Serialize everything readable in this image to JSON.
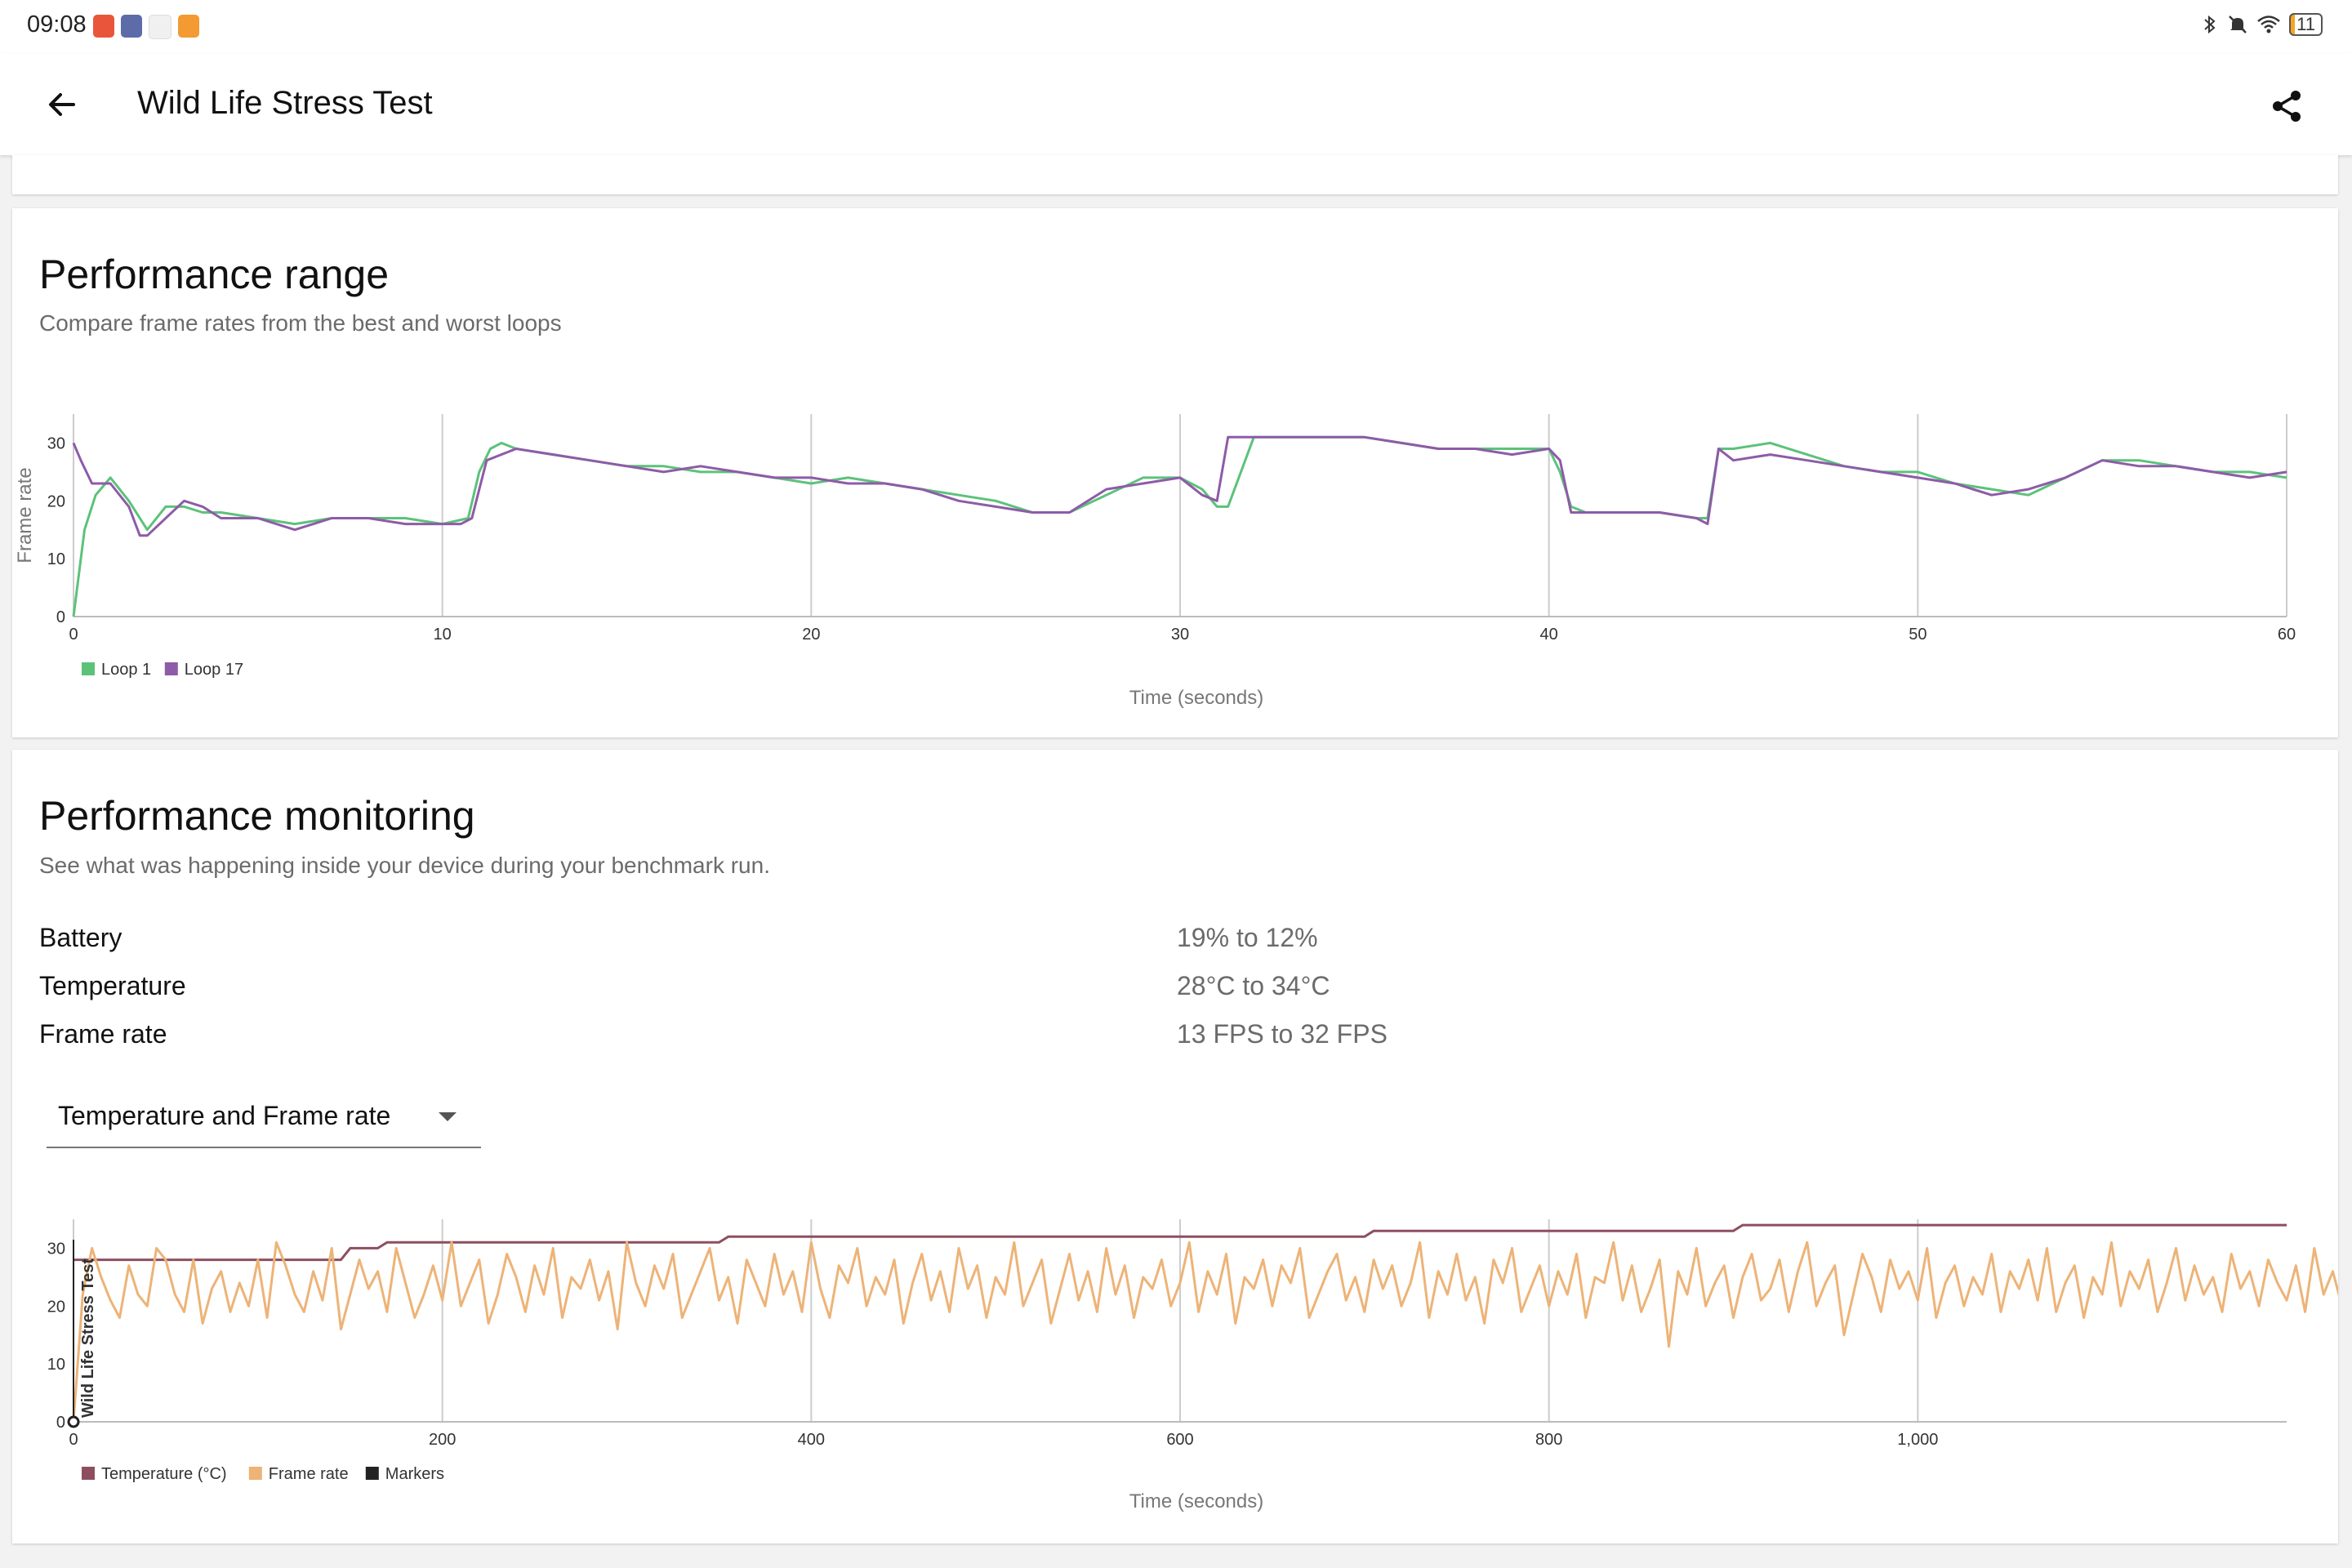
{
  "status_bar": {
    "time": "09:08",
    "battery": "11"
  },
  "app_bar": {
    "title": "Wild Life Stress Test"
  },
  "colors": {
    "loop1": "#5cc27a",
    "loop17": "#8e5ba8",
    "temperature": "#8d4f5f",
    "frame_rate": "#edb377",
    "markers": "#222222"
  },
  "performance_range": {
    "title": "Performance range",
    "subtitle": "Compare frame rates from the best and worst loops"
  },
  "performance_monitoring": {
    "title": "Performance monitoring",
    "subtitle": "See what was happening inside your device during your benchmark run.",
    "stats": [
      {
        "label": "Battery",
        "value": "19% to 12%"
      },
      {
        "label": "Temperature",
        "value": "28°C to 34°C"
      },
      {
        "label": "Frame rate",
        "value": "13 FPS to 32 FPS"
      }
    ],
    "dropdown": {
      "selected": "Temperature and Frame rate"
    }
  },
  "chart_data": [
    {
      "type": "line",
      "ylabel": "Frame rate",
      "xlabel": "Time (seconds)",
      "xlim": [
        0,
        60
      ],
      "ylim": [
        0,
        35
      ],
      "x_ticks": [
        "0",
        "10",
        "20",
        "30",
        "40",
        "50",
        "60"
      ],
      "y_ticks": [
        "0",
        "10",
        "20",
        "30"
      ],
      "legend": [
        "Loop 1",
        "Loop 17"
      ],
      "series": [
        {
          "name": "Loop 1",
          "x": [
            0,
            0.3,
            0.6,
            1,
            1.5,
            2,
            2.5,
            3,
            3.5,
            4,
            5,
            6,
            7,
            8,
            9,
            10,
            10.7,
            11,
            11.3,
            11.6,
            12,
            13,
            14,
            15,
            16,
            17,
            18,
            19,
            20,
            21,
            22,
            23,
            24,
            25,
            26,
            27,
            28,
            29,
            30,
            30.6,
            31,
            31.3,
            32,
            33,
            34,
            35,
            36,
            37,
            38,
            39,
            40,
            40.3,
            40.6,
            41,
            42,
            43,
            44,
            44.3,
            44.6,
            45,
            46,
            47,
            48,
            49,
            50,
            51,
            52,
            53,
            54,
            55,
            56,
            57,
            58,
            59,
            60
          ],
          "y": [
            0,
            15,
            21,
            24,
            20,
            15,
            19,
            19,
            18,
            18,
            17,
            16,
            17,
            17,
            17,
            16,
            17,
            25,
            29,
            30,
            29,
            28,
            27,
            26,
            26,
            25,
            25,
            24,
            23,
            24,
            23,
            22,
            21,
            20,
            18,
            18,
            21,
            24,
            24,
            22,
            19,
            19,
            31,
            31,
            31,
            31,
            30,
            29,
            29,
            29,
            29,
            25,
            19,
            18,
            18,
            18,
            17,
            17,
            29,
            29,
            30,
            28,
            26,
            25,
            25,
            23,
            22,
            21,
            24,
            27,
            27,
            26,
            25,
            25,
            24
          ]
        },
        {
          "name": "Loop 17",
          "x": [
            0,
            0.2,
            0.5,
            1,
            1.5,
            1.8,
            2,
            2.5,
            3,
            3.5,
            4,
            5,
            6,
            7,
            8,
            9,
            10,
            10.5,
            10.8,
            11.2,
            12,
            13,
            14,
            15,
            16,
            17,
            18,
            19,
            20,
            21,
            22,
            23,
            24,
            25,
            26,
            27,
            28,
            29,
            30,
            30.6,
            31,
            31.3,
            32,
            33,
            34,
            35,
            36,
            37,
            38,
            39,
            40,
            40.3,
            40.6,
            41,
            42,
            43,
            44,
            44.3,
            44.6,
            45,
            46,
            47,
            48,
            49,
            50,
            51,
            52,
            53,
            54,
            55,
            56,
            57,
            58,
            59,
            60
          ],
          "y": [
            30,
            27,
            23,
            23,
            19,
            14,
            14,
            17,
            20,
            19,
            17,
            17,
            15,
            17,
            17,
            16,
            16,
            16,
            17,
            27,
            29,
            28,
            27,
            26,
            25,
            26,
            25,
            24,
            24,
            23,
            23,
            22,
            20,
            19,
            18,
            18,
            22,
            23,
            24,
            21,
            20,
            31,
            31,
            31,
            31,
            31,
            30,
            29,
            29,
            28,
            29,
            27,
            18,
            18,
            18,
            18,
            17,
            16,
            29,
            27,
            28,
            27,
            26,
            25,
            24,
            23,
            21,
            22,
            24,
            27,
            26,
            26,
            25,
            24,
            25
          ]
        }
      ]
    },
    {
      "type": "line",
      "xlabel": "Time (seconds)",
      "xlim": [
        0,
        1200
      ],
      "ylim": [
        0,
        35
      ],
      "x_ticks": [
        "0",
        "200",
        "400",
        "600",
        "800",
        "1,000"
      ],
      "y_ticks": [
        "0",
        "10",
        "20",
        "30"
      ],
      "legend": [
        "Temperature (°C)",
        "Frame rate",
        "Markers"
      ],
      "marker_label": "Wild Life Stress Test",
      "series": [
        {
          "name": "Temperature (°C)",
          "x": [
            0,
            145,
            150,
            165,
            170,
            350,
            355,
            700,
            705,
            900,
            905,
            1200
          ],
          "y": [
            28,
            28,
            30,
            30,
            31,
            31,
            32,
            32,
            33,
            33,
            34,
            34
          ]
        },
        {
          "name": "Frame rate",
          "note_x_step": 5,
          "y": [
            0,
            22,
            30,
            25,
            21,
            18,
            27,
            22,
            20,
            30,
            28,
            22,
            19,
            28,
            17,
            23,
            26,
            19,
            24,
            20,
            28,
            18,
            31,
            27,
            22,
            19,
            26,
            21,
            30,
            16,
            22,
            28,
            23,
            26,
            19,
            30,
            24,
            18,
            22,
            27,
            21,
            31,
            20,
            24,
            28,
            17,
            22,
            29,
            25,
            19,
            27,
            22,
            30,
            18,
            25,
            23,
            28,
            21,
            26,
            16,
            31,
            24,
            20,
            27,
            23,
            29,
            18,
            22,
            26,
            30,
            21,
            25,
            17,
            28,
            24,
            20,
            29,
            22,
            26,
            19,
            31,
            23,
            18,
            27,
            24,
            30,
            20,
            25,
            22,
            28,
            17,
            24,
            29,
            21,
            26,
            19,
            30,
            23,
            27,
            18,
            25,
            22,
            31,
            20,
            24,
            28,
            17,
            23,
            29,
            21,
            26,
            19,
            30,
            22,
            27,
            18,
            25,
            23,
            28,
            20,
            24,
            31,
            19,
            26,
            22,
            29,
            17,
            25,
            23,
            28,
            20,
            27,
            24,
            30,
            18,
            22,
            26,
            29,
            21,
            25,
            19,
            28,
            23,
            27,
            20,
            24,
            31,
            18,
            26,
            22,
            29,
            21,
            25,
            17,
            28,
            24,
            30,
            19,
            23,
            27,
            20,
            26,
            22,
            29,
            18,
            25,
            24,
            31,
            21,
            27,
            19,
            23,
            28,
            13,
            26,
            22,
            30,
            20,
            24,
            27,
            18,
            25,
            29,
            21,
            23,
            28,
            19,
            26,
            31,
            20,
            24,
            27,
            15,
            22,
            29,
            25,
            19,
            28,
            23,
            26,
            21,
            30,
            18,
            24,
            27,
            20,
            25,
            22,
            29,
            19,
            26,
            23,
            28,
            21,
            30,
            19,
            24,
            27,
            18,
            25,
            22,
            31,
            20,
            26,
            23,
            28,
            19,
            24,
            30,
            21,
            27,
            22,
            25,
            19,
            29,
            23,
            26,
            20,
            28,
            24,
            21,
            27,
            19,
            30,
            22,
            26,
            20,
            25
          ]
        }
      ]
    }
  ]
}
